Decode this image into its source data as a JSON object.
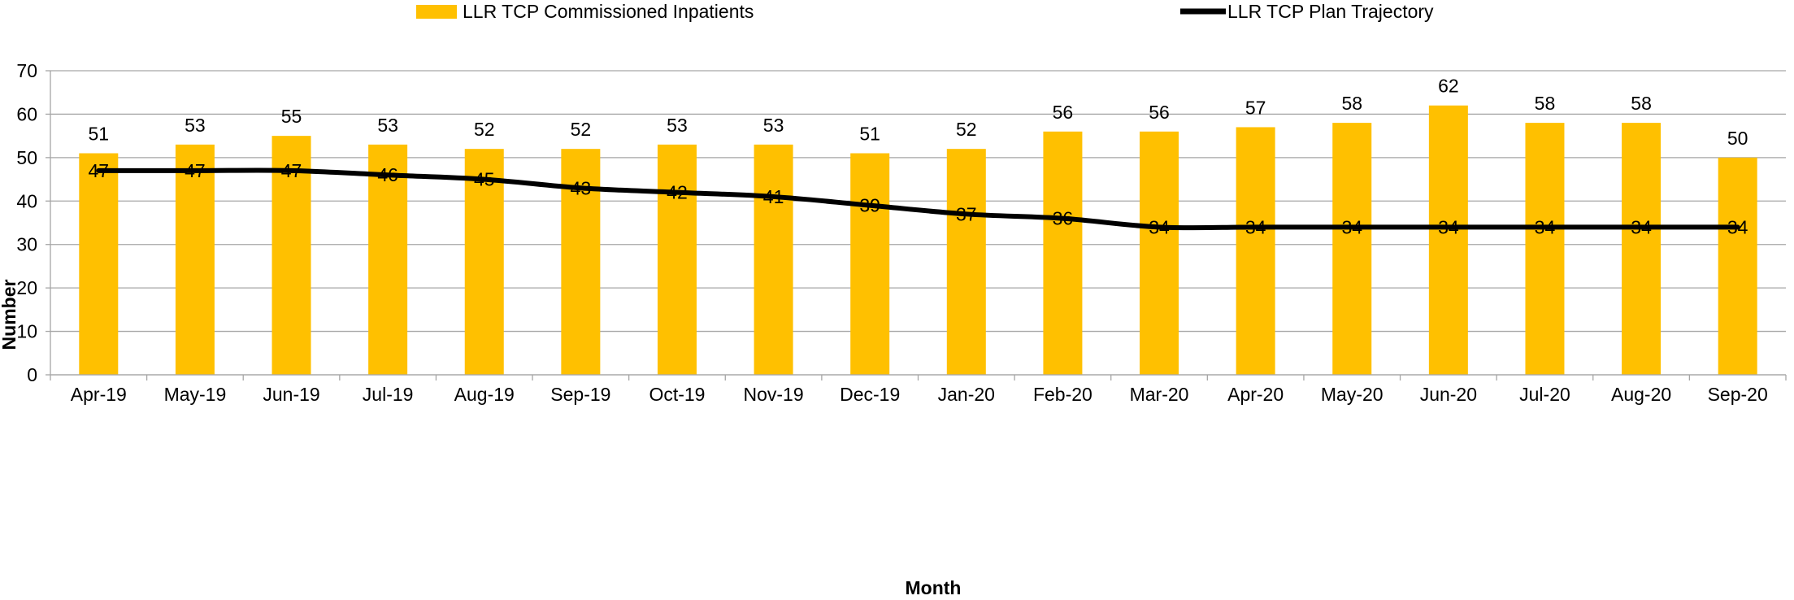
{
  "chart_data": {
    "type": "bar",
    "categories": [
      "Apr-19",
      "May-19",
      "Jun-19",
      "Jul-19",
      "Aug-19",
      "Sep-19",
      "Oct-19",
      "Nov-19",
      "Dec-19",
      "Jan-20",
      "Feb-20",
      "Mar-20",
      "Apr-20",
      "May-20",
      "Jun-20",
      "Jul-20",
      "Aug-20",
      "Sep-20"
    ],
    "series": [
      {
        "name": "LLR TCP Commissioned Inpatients",
        "kind": "bar",
        "color": "#FFC000",
        "values": [
          51,
          53,
          55,
          53,
          52,
          52,
          53,
          53,
          51,
          52,
          56,
          56,
          57,
          58,
          62,
          58,
          58,
          50
        ]
      },
      {
        "name": "LLR TCP Plan Trajectory",
        "kind": "line",
        "color": "#000000",
        "values": [
          47,
          47,
          47,
          46,
          45,
          43,
          42,
          41,
          39,
          37,
          36,
          34,
          34,
          34,
          34,
          34,
          34,
          34
        ]
      }
    ],
    "xlabel": "Month",
    "ylabel": "Number",
    "ylim": [
      0,
      70
    ],
    "yticks": [
      0,
      10,
      20,
      30,
      40,
      50,
      60,
      70
    ],
    "grid": true,
    "legend_position": "top",
    "data_labels": true
  }
}
